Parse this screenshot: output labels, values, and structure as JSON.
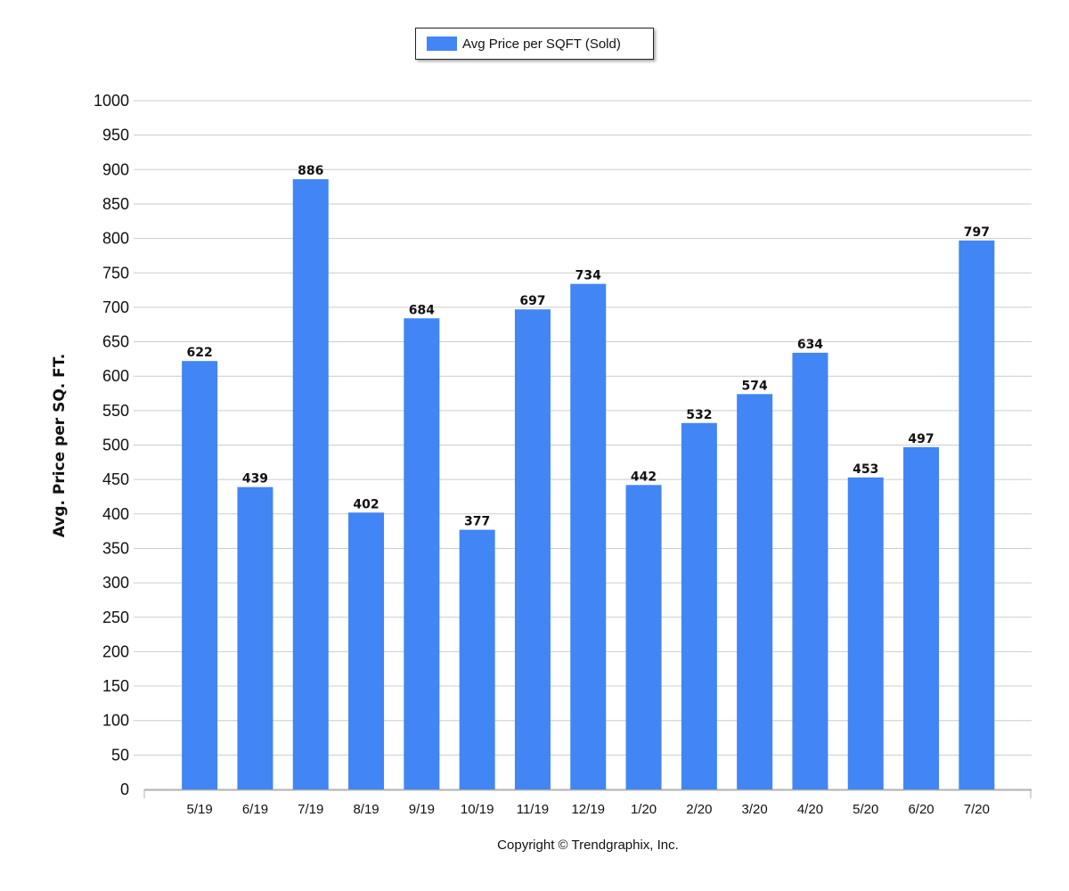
{
  "chart_data": {
    "type": "bar",
    "categories": [
      "5/19",
      "6/19",
      "7/19",
      "8/19",
      "9/19",
      "10/19",
      "11/19",
      "12/19",
      "1/20",
      "2/20",
      "3/20",
      "4/20",
      "5/20",
      "6/20",
      "7/20"
    ],
    "series": [
      {
        "name": "Avg Price per SQFT (Sold)",
        "values": [
          622,
          439,
          886,
          402,
          684,
          377,
          697,
          734,
          442,
          532,
          574,
          634,
          453,
          497,
          797
        ],
        "color": "#4285f4"
      }
    ],
    "title": "",
    "xlabel": "",
    "ylabel": "Avg. Price per SQ. FT.",
    "ylim": [
      0,
      1000
    ],
    "yticks": [
      0,
      50,
      100,
      150,
      200,
      250,
      300,
      350,
      400,
      450,
      500,
      550,
      600,
      650,
      700,
      750,
      800,
      850,
      900,
      950,
      1000
    ],
    "grid": true,
    "legend_position": "top-center",
    "data_labels": true,
    "footer": "Copyright © Trendgraphix, Inc.",
    "colors": {
      "bar": "#4285f4",
      "grid": "#cccccc",
      "axis": "#b0b0b0",
      "text": "#111111"
    }
  }
}
